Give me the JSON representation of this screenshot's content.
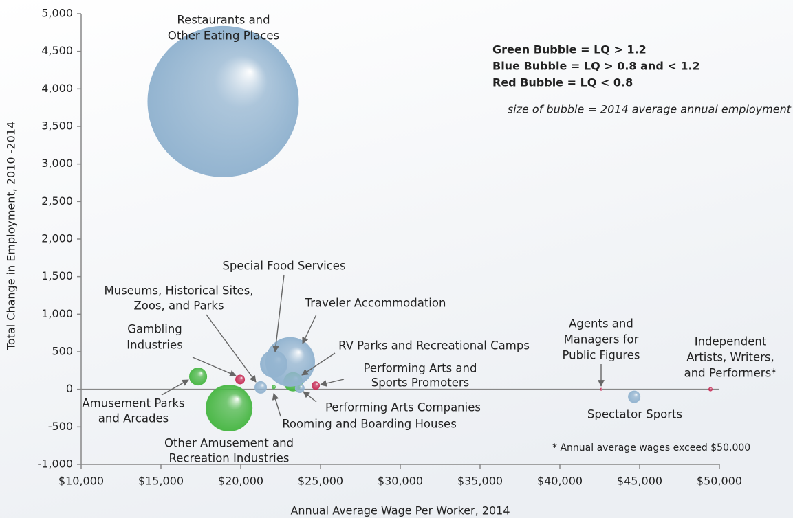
{
  "chart_data": {
    "type": "bubble",
    "xlabel": "Annual Average Wage Per Worker, 2014",
    "ylabel": "Total Change in Employment, 2010 -2014",
    "note": "size of bubble = 2014 average annual employment",
    "footnote": "* Annual average wages exceed $50,000",
    "xlim": [
      10000,
      50000
    ],
    "xticks": [
      {
        "value": 10000,
        "label": "$10,000"
      },
      {
        "value": 15000,
        "label": "$15,000"
      },
      {
        "value": 20000,
        "label": "$20,000"
      },
      {
        "value": 25000,
        "label": "$25,000"
      },
      {
        "value": 30000,
        "label": "$30,000"
      },
      {
        "value": 35000,
        "label": "$35,000"
      },
      {
        "value": 40000,
        "label": "$40,000"
      },
      {
        "value": 45000,
        "label": "$45,000"
      },
      {
        "value": 50000,
        "label": "$50,000"
      }
    ],
    "ylim": [
      -1000,
      5000
    ],
    "yticks": [
      {
        "value": -1000,
        "label": "-1,000"
      },
      -500,
      0,
      500,
      {
        "value": 1000,
        "label": "1,000"
      },
      {
        "value": 1500,
        "label": "1,500"
      },
      {
        "value": 2000,
        "label": "2,000"
      },
      {
        "value": 2500,
        "label": "2,500"
      },
      {
        "value": 3000,
        "label": "3,000"
      },
      {
        "value": 3500,
        "label": "3,500"
      },
      {
        "value": 4000,
        "label": "4,000"
      },
      {
        "value": 4500,
        "label": "4,500"
      },
      {
        "value": 5000,
        "label": "5,000"
      }
    ],
    "series": [
      {
        "name": "Green Bubble = LQ > 1.2",
        "color": "#4cb848",
        "x": [
          17330,
          19270,
          22070,
          23280
        ],
        "values": [
          170,
          -250,
          30,
          100
        ],
        "sizes": [
          170,
          1160,
          9,
          196
        ],
        "labels": [
          [
            "Amusement Parks",
            "and Arcades"
          ],
          [
            "Other Amusement and",
            "Recreation Industries"
          ],
          [
            "Rooming and Boarding Houses"
          ],
          [
            "RV Parks and Recreational Camps"
          ]
        ]
      },
      {
        "name": "Blue Bubble = LQ > 0.8 and < 1.2",
        "color": "#93b4d0",
        "x": [
          18900,
          21250,
          22070,
          23100,
          23700,
          44660
        ],
        "values": [
          3830,
          25,
          335,
          365,
          15,
          -100
        ],
        "sizes": [
          12100,
          81,
          400,
          1300,
          49,
          81
        ],
        "labels": [
          [
            "Restaurants and",
            "Other Eating Places"
          ],
          [
            "Museums, Historical Sites,",
            "Zoos, and Parks"
          ],
          [
            "Special Food Services"
          ],
          [
            "Traveler Accommodation"
          ],
          [
            "Performing Arts Companies"
          ],
          [
            "Spectator Sports"
          ]
        ]
      },
      {
        "name": "Red Bubble = LQ < 0.8",
        "color": "#c8315a",
        "x": [
          19960,
          24700,
          42590,
          49440
        ],
        "values": [
          130,
          50,
          0,
          0
        ],
        "sizes": [
          49,
          36,
          1,
          9
        ],
        "labels": [
          [
            "Gambling",
            "Industries"
          ],
          [
            "Performing Arts and",
            "Sports Promoters"
          ],
          [
            "Agents and",
            "Managers for",
            "Public Figures"
          ],
          [
            "Independent",
            "Artists, Writers,",
            "and Performers*"
          ]
        ]
      }
    ]
  }
}
